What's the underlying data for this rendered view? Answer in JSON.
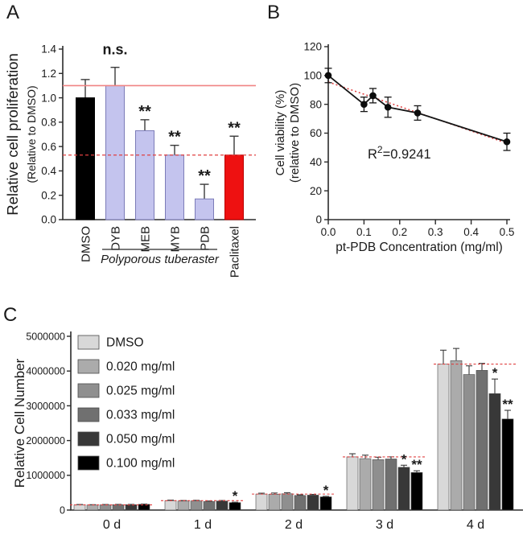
{
  "panels": {
    "a": {
      "letter": "A"
    },
    "b": {
      "letter": "B"
    },
    "c": {
      "letter": "C"
    }
  },
  "colors": {
    "significance_red": "#ee1111",
    "ref_line_solid": "#f08484",
    "ref_line_dashed": "#e04040",
    "axis": "#2b2b2b"
  },
  "chart_data": [
    {
      "id": "A",
      "type": "bar",
      "ylabel": "Relative cell proliferation",
      "ylabel_sub": "(Relative to DMSO)",
      "categories": [
        "DMSO",
        "DYB",
        "MEB",
        "MYB",
        "PDB",
        "Paclitaxel"
      ],
      "values": [
        1.0,
        1.1,
        0.73,
        0.53,
        0.17,
        0.53
      ],
      "errors": [
        0.15,
        0.15,
        0.09,
        0.08,
        0.12,
        0.155
      ],
      "bar_colors": [
        "#000000",
        "#c4c4ee",
        "#c4c4ee",
        "#c4c4ee",
        "#c4c4ee",
        "#ee1111"
      ],
      "bar_strokes": [
        "#000000",
        "#7c7cb8",
        "#7c7cb8",
        "#7c7cb8",
        "#7c7cb8",
        "#bb0000"
      ],
      "annotations": [
        "",
        "n.s.",
        "**",
        "**",
        "**",
        "**"
      ],
      "annotation_color": "#ee1111",
      "ylim": [
        0,
        1.4
      ],
      "ytick_step": 0.2,
      "ytick_labels": [
        "0.0",
        "0.2",
        "0.4",
        "0.6",
        "0.8",
        "1.0",
        "1.2",
        "1.4"
      ],
      "ref_lines": [
        {
          "y": 1.1,
          "style": "solid",
          "color": "#f08484"
        },
        {
          "y": 0.53,
          "style": "dashed",
          "color": "#e04040"
        }
      ],
      "group_annotation": {
        "label": "Polyporous tuberaster",
        "from": 1,
        "to": 4
      },
      "grid": false
    },
    {
      "id": "B",
      "type": "line",
      "xlabel": "pt-PDB Concentration (mg/ml)",
      "ylabel": "Cell viability (%)",
      "ylabel_sub": "(relative to DMSO)",
      "x": [
        0.0,
        0.1,
        0.125,
        0.167,
        0.25,
        0.5
      ],
      "y": [
        100,
        80,
        86,
        78,
        74,
        54
      ],
      "yerr": [
        5,
        5,
        5,
        7,
        5,
        6
      ],
      "xlim": [
        0,
        0.5
      ],
      "xtick_step": 0.1,
      "xtick_labels": [
        "0.0",
        "0.1",
        "0.2",
        "0.3",
        "0.4",
        "0.5"
      ],
      "ylim": [
        0,
        120
      ],
      "ytick_step": 20,
      "ytick_labels": [
        "0",
        "20",
        "40",
        "60",
        "80",
        "100",
        "120"
      ],
      "line_color": "#151515",
      "marker": "circle",
      "trend": {
        "x": [
          0.0,
          0.5
        ],
        "y": [
          95.5,
          53
        ],
        "color": "#e04040",
        "style": "dotted"
      },
      "r2_label": {
        "pre": "R",
        "sup": "2",
        "post": "=0.9241",
        "color": "#ee1111"
      },
      "grid": false
    },
    {
      "id": "C",
      "type": "grouped_bar",
      "ylabel": "Relative Cell Number",
      "categories": [
        "0 d",
        "1 d",
        "2 d",
        "3 d",
        "4 d"
      ],
      "series": [
        {
          "name": "DMSO",
          "color": "#d8d8d8",
          "values": [
            150000,
            270000,
            460000,
            1530000,
            4200000
          ],
          "errors": [
            10000,
            15000,
            25000,
            90000,
            400000
          ]
        },
        {
          "name": "0.020 mg/ml",
          "color": "#ababab",
          "values": [
            145000,
            260000,
            455000,
            1480000,
            4300000
          ],
          "errors": [
            10000,
            15000,
            35000,
            100000,
            350000
          ]
        },
        {
          "name": "0.025 mg/ml",
          "color": "#8f8f8f",
          "values": [
            150000,
            265000,
            470000,
            1450000,
            3900000
          ],
          "errors": [
            10000,
            15000,
            30000,
            70000,
            250000
          ]
        },
        {
          "name": "0.033 mg/ml",
          "color": "#707070",
          "values": [
            155000,
            245000,
            420000,
            1470000,
            4020000
          ],
          "errors": [
            8000,
            15000,
            20000,
            60000,
            200000
          ]
        },
        {
          "name": "0.050 mg/ml",
          "color": "#383838",
          "values": [
            155000,
            260000,
            430000,
            1230000,
            3350000
          ],
          "errors": [
            8000,
            15000,
            20000,
            60000,
            420000
          ]
        },
        {
          "name": "0.100 mg/ml",
          "color": "#000000",
          "values": [
            165000,
            215000,
            380000,
            1080000,
            2620000
          ],
          "errors": [
            8000,
            12000,
            15000,
            50000,
            250000
          ]
        }
      ],
      "ylim": [
        0,
        5000000
      ],
      "ytick_step": 1000000,
      "ytick_labels": [
        "0",
        "1000000",
        "2000000",
        "3000000",
        "4000000",
        "5000000"
      ],
      "sig_markers": [
        {
          "group": 1,
          "series": 5,
          "label": "*"
        },
        {
          "group": 2,
          "series": 5,
          "label": "*"
        },
        {
          "group": 3,
          "series": 4,
          "label": "*"
        },
        {
          "group": 3,
          "series": 5,
          "label": "**"
        },
        {
          "group": 4,
          "series": 4,
          "label": "*"
        },
        {
          "group": 4,
          "series": 5,
          "label": "**"
        }
      ],
      "sig_color": "#ee1111",
      "ref_line": {
        "follows_series": "DMSO",
        "style": "dashed",
        "color": "#e04040"
      },
      "legend_position": "upper-left",
      "grid": false
    }
  ]
}
